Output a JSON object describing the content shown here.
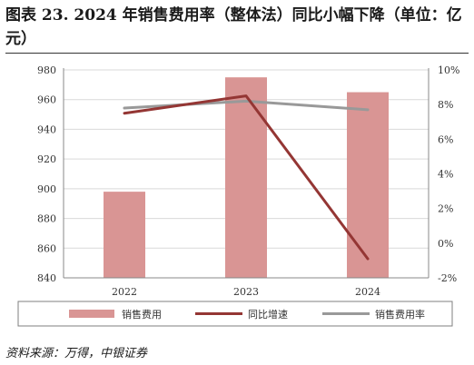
{
  "title": "图表 23. 2024 年销售费用率（整体法）同比小幅下降（单位：亿元）",
  "source": "资料来源：万得，中银证券",
  "chart_data": {
    "type": "bar",
    "categories": [
      "2022",
      "2023",
      "2024"
    ],
    "series": [
      {
        "name": "销售费用",
        "type": "bar",
        "axis": "left",
        "color": "#d99594",
        "values": [
          898,
          975,
          965
        ]
      },
      {
        "name": "同比增速",
        "type": "line",
        "axis": "right",
        "color": "#943634",
        "values": [
          7.5,
          8.5,
          -0.9
        ]
      },
      {
        "name": "销售费用率",
        "type": "line",
        "axis": "right",
        "color": "#999999",
        "values": [
          7.8,
          8.2,
          7.7
        ]
      }
    ],
    "left_axis": {
      "ylim": [
        840,
        980
      ],
      "ticks": [
        "980",
        "960",
        "940",
        "920",
        "900",
        "880",
        "860",
        "840"
      ]
    },
    "right_axis": {
      "ylim": [
        -2,
        10
      ],
      "ticks": [
        "10%",
        "8%",
        "6%",
        "4%",
        "2%",
        "0%",
        "-2%"
      ]
    },
    "grid": true,
    "legend_position": "bottom"
  }
}
